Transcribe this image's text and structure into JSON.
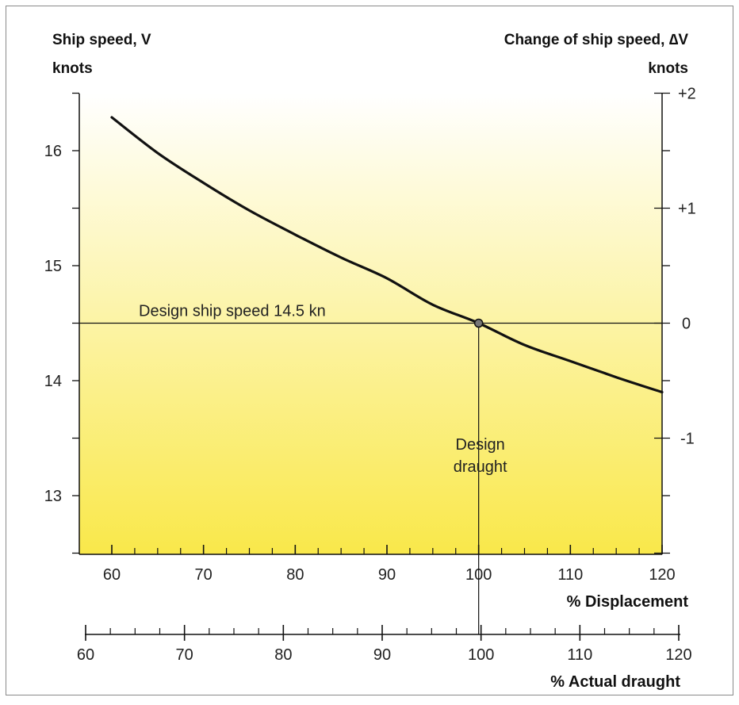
{
  "chart_data": {
    "type": "line",
    "left_axis": {
      "title": "Ship speed, V",
      "unit": "knots",
      "range": [
        12.5,
        16.5
      ],
      "ticks": [
        "13",
        "14",
        "15",
        "16"
      ]
    },
    "right_axis": {
      "title": "Change of ship speed, ∆V",
      "unit": "knots",
      "range": [
        -2,
        2
      ],
      "ticks": [
        "+2",
        "+1",
        "0",
        "-1"
      ]
    },
    "x_axis_displacement": {
      "label": "% Displacement",
      "range": [
        60,
        120
      ],
      "ticks": [
        "60",
        "70",
        "80",
        "90",
        "100",
        "110",
        "120"
      ]
    },
    "x_axis_draught": {
      "label": "% Actual draught",
      "range": [
        60,
        120
      ],
      "ticks": [
        "60",
        "70",
        "80",
        "90",
        "100",
        "110",
        "120"
      ]
    },
    "series": [
      {
        "x": [
          60,
          65,
          70,
          75,
          80,
          85,
          90,
          95,
          100,
          105,
          110,
          115,
          120
        ],
        "y": [
          16.29,
          15.98,
          15.72,
          15.48,
          15.27,
          15.07,
          14.89,
          14.66,
          14.5,
          14.31,
          14.17,
          14.03,
          13.9
        ]
      }
    ],
    "annotations": {
      "design_speed_label": "Design ship speed 14.5 kn",
      "design_speed_value": 14.5,
      "design_draught_line1": "Design",
      "design_draught_line2": "draught",
      "design_point_x": 100
    }
  }
}
